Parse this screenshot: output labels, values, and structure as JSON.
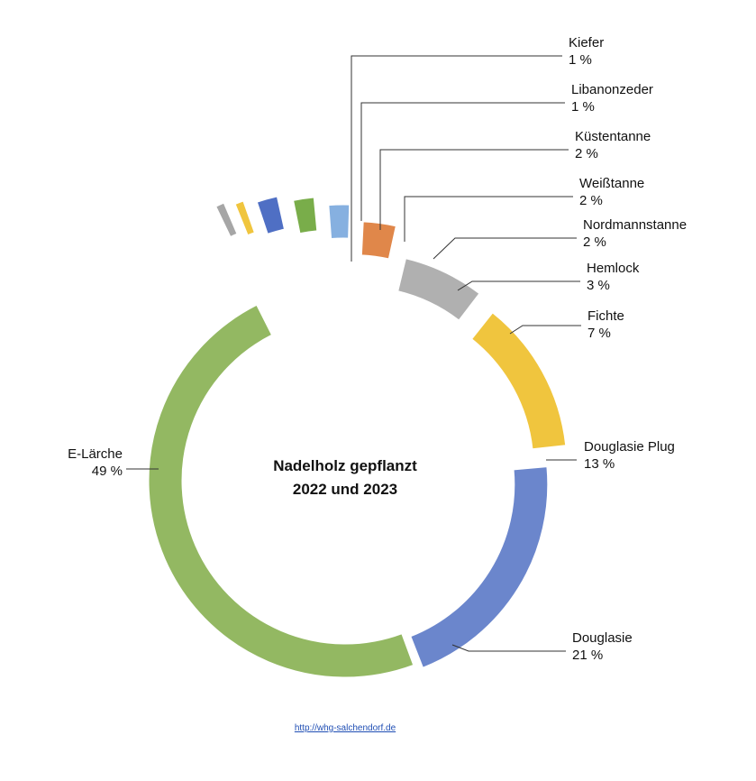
{
  "chart_data": {
    "type": "pie",
    "variant": "donut",
    "title": "Nadelholz gepflanzt",
    "subtitle": "2022 und 2023",
    "unit": "%",
    "slices": [
      {
        "label": "Fichte",
        "value": 7,
        "value_label": "7 %",
        "color": "#b0b0b0"
      },
      {
        "label": "Douglasie Plug",
        "value": 13,
        "value_label": "13 %",
        "color": "#f0c53e"
      },
      {
        "label": "Douglasie",
        "value": 21,
        "value_label": "21 %",
        "color": "#6b86cc"
      },
      {
        "label": "E-Lärche",
        "value": 49,
        "value_label": "49 %",
        "color": "#93b862"
      },
      {
        "label": "Kiefer",
        "value": 1,
        "value_label": "1 %",
        "color": "#a6a6a6"
      },
      {
        "label": "Libanonzeder",
        "value": 1,
        "value_label": "1 %",
        "color": "#f0c53e"
      },
      {
        "label": "Küstentanne",
        "value": 2,
        "value_label": "2 %",
        "color": "#4f6fc4"
      },
      {
        "label": "Weißtanne",
        "value": 2,
        "value_label": "2 %",
        "color": "#79ad4a"
      },
      {
        "label": "Nordmannstanne",
        "value": 2,
        "value_label": "2 %",
        "color": "#86b0e0"
      },
      {
        "label": "Hemlock",
        "value": 3,
        "value_label": "3 %",
        "color": "#e0874a"
      }
    ]
  },
  "footer": {
    "source_link": "http://whg-salchendorf.de"
  }
}
